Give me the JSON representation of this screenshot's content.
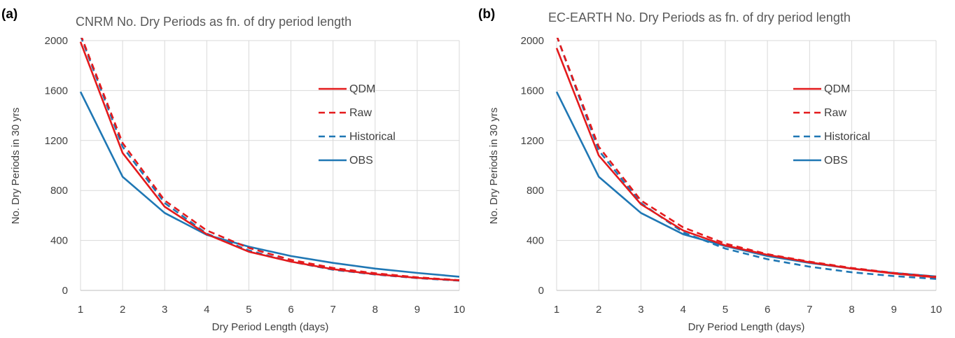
{
  "chart_data": [
    {
      "type": "line",
      "panel_label": "(a)",
      "title": "CNRM No. Dry Periods as fn. of dry period length",
      "xlabel": "Dry Period Length (days)",
      "ylabel": "No. Dry Periods in 30 yrs",
      "xlim": [
        1,
        10
      ],
      "ylim": [
        0,
        2000
      ],
      "x": [
        1,
        2,
        3,
        4,
        5,
        6,
        7,
        8,
        9,
        10
      ],
      "xticks": [
        "1",
        "2",
        "3",
        "4",
        "5",
        "6",
        "7",
        "8",
        "9",
        "10"
      ],
      "yticks": [
        "0",
        "400",
        "800",
        "1200",
        "1600",
        "2000"
      ],
      "grid": true,
      "legend_position": "right",
      "series": [
        {
          "name": "QDM",
          "color": "#e41a1c",
          "dash": "solid",
          "values": [
            1990,
            1100,
            670,
            450,
            310,
            230,
            170,
            130,
            100,
            80
          ]
        },
        {
          "name": "Raw",
          "color": "#e41a1c",
          "dash": "dashed",
          "values": [
            2050,
            1180,
            720,
            480,
            340,
            245,
            180,
            138,
            105,
            82
          ]
        },
        {
          "name": "Historical",
          "color": "#1f77b4",
          "dash": "dashed",
          "values": [
            2040,
            1150,
            700,
            455,
            320,
            230,
            165,
            127,
            98,
            78
          ]
        },
        {
          "name": "OBS",
          "color": "#1f77b4",
          "dash": "solid",
          "values": [
            1590,
            910,
            620,
            445,
            350,
            275,
            220,
            175,
            140,
            110
          ]
        }
      ]
    },
    {
      "type": "line",
      "panel_label": "(b)",
      "title": "EC-EARTH No. Dry Periods as fn. of dry period length",
      "xlabel": "Dry Period Length (days)",
      "ylabel": "No. Dry Periods in 30 yrs",
      "xlim": [
        1,
        10
      ],
      "ylim": [
        0,
        2000
      ],
      "x": [
        1,
        2,
        3,
        4,
        5,
        6,
        7,
        8,
        9,
        10
      ],
      "xticks": [
        "1",
        "2",
        "3",
        "4",
        "5",
        "6",
        "7",
        "8",
        "9",
        "10"
      ],
      "yticks": [
        "0",
        "400",
        "800",
        "1200",
        "1600",
        "2000"
      ],
      "grid": true,
      "legend_position": "right",
      "series": [
        {
          "name": "QDM",
          "color": "#e41a1c",
          "dash": "solid",
          "values": [
            1940,
            1080,
            690,
            480,
            360,
            285,
            225,
            175,
            135,
            105
          ]
        },
        {
          "name": "Raw",
          "color": "#e41a1c",
          "dash": "dashed",
          "values": [
            2040,
            1150,
            720,
            505,
            375,
            290,
            230,
            180,
            140,
            110
          ]
        },
        {
          "name": "Historical",
          "color": "#1f77b4",
          "dash": "dashed",
          "values": [
            2040,
            1120,
            700,
            465,
            335,
            250,
            190,
            145,
            115,
            92
          ]
        },
        {
          "name": "OBS",
          "color": "#1f77b4",
          "dash": "solid",
          "values": [
            1590,
            910,
            620,
            450,
            355,
            275,
            220,
            175,
            140,
            112
          ]
        }
      ]
    }
  ]
}
